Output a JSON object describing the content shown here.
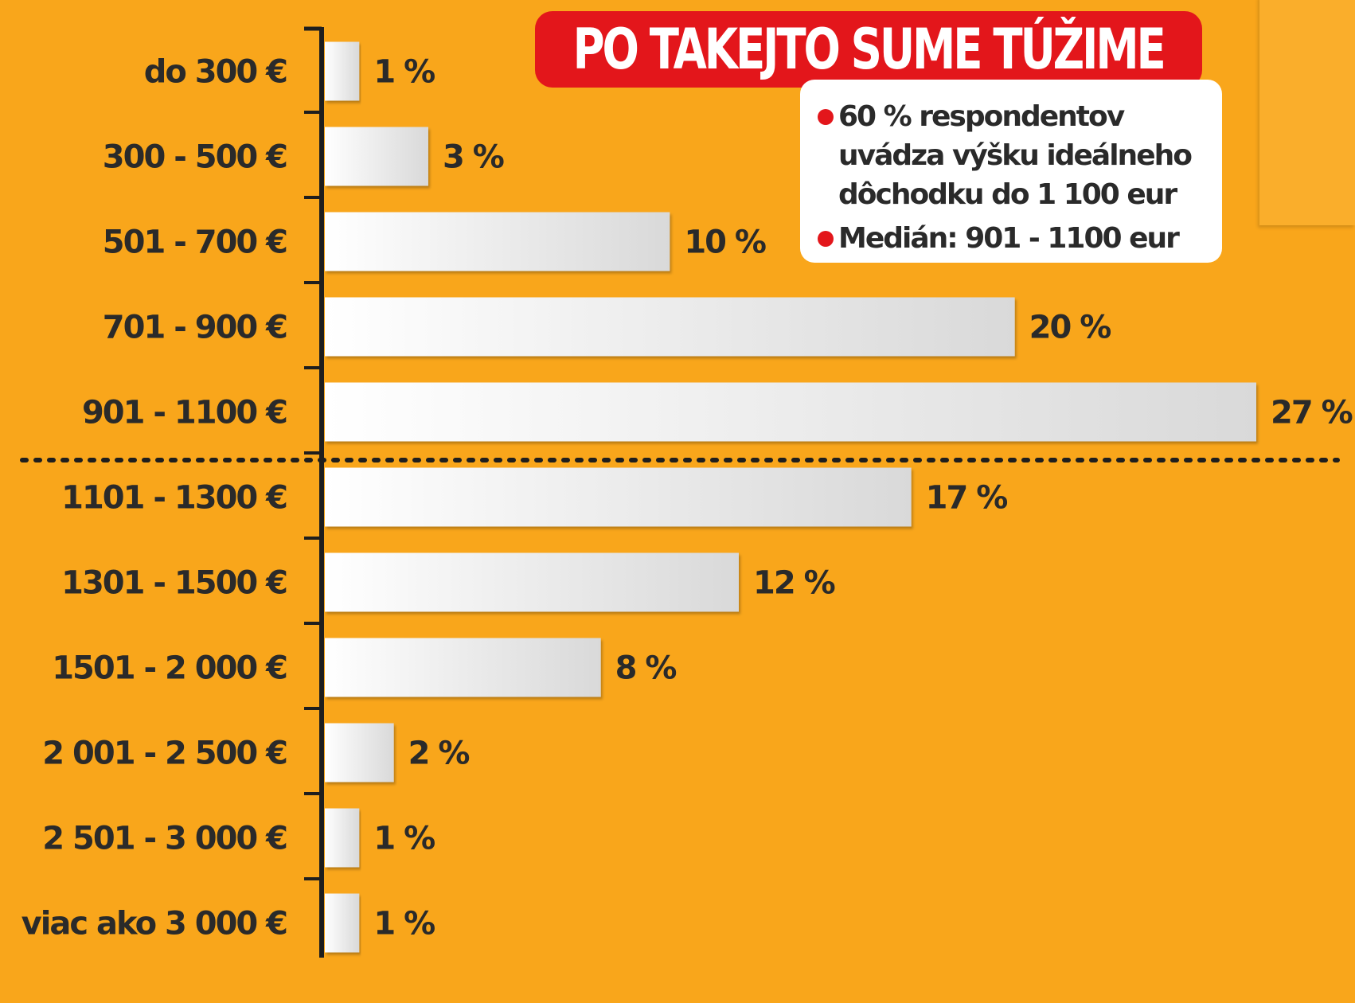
{
  "chart_data": {
    "type": "bar",
    "orientation": "horizontal",
    "title": "PO TAKEJTO SUME TÚŽIME",
    "categories": [
      "do 300 €",
      "300 - 500 €",
      "501 - 700 €",
      "701 - 900 €",
      "901 - 1100 €",
      "1101 - 1300 €",
      "1301 - 1500 €",
      "1501 - 2 000 €",
      "2 001 - 2 500 €",
      "2 501 - 3 000 €",
      "viac ako 3 000 €"
    ],
    "values": [
      1,
      3,
      10,
      20,
      27,
      17,
      12,
      8,
      2,
      1,
      1
    ],
    "value_labels": [
      "1 %",
      "3 %",
      "10 %",
      "20 %",
      "27 %",
      "17 %",
      "12 %",
      "8 %",
      "2 %",
      "1 %",
      "1 %"
    ],
    "unit": "%",
    "xlim": [
      0,
      27
    ],
    "grid": false,
    "legend": "none",
    "divider_after_category": "901 - 1100 €",
    "notes": [
      "60 % respondentov uvádza výšku ideálneho dôchodku do 1 100 eur",
      "Medián: 901 - 1100 eur"
    ]
  },
  "colors": {
    "background": "#F9A61B",
    "title_background": "#E3161B",
    "title_text": "#FFFFFF",
    "bullet": "#E3161B",
    "text": "#2A2A2A",
    "bar_light": "#FFFFFF",
    "bar_dark": "#D9D9D9"
  }
}
